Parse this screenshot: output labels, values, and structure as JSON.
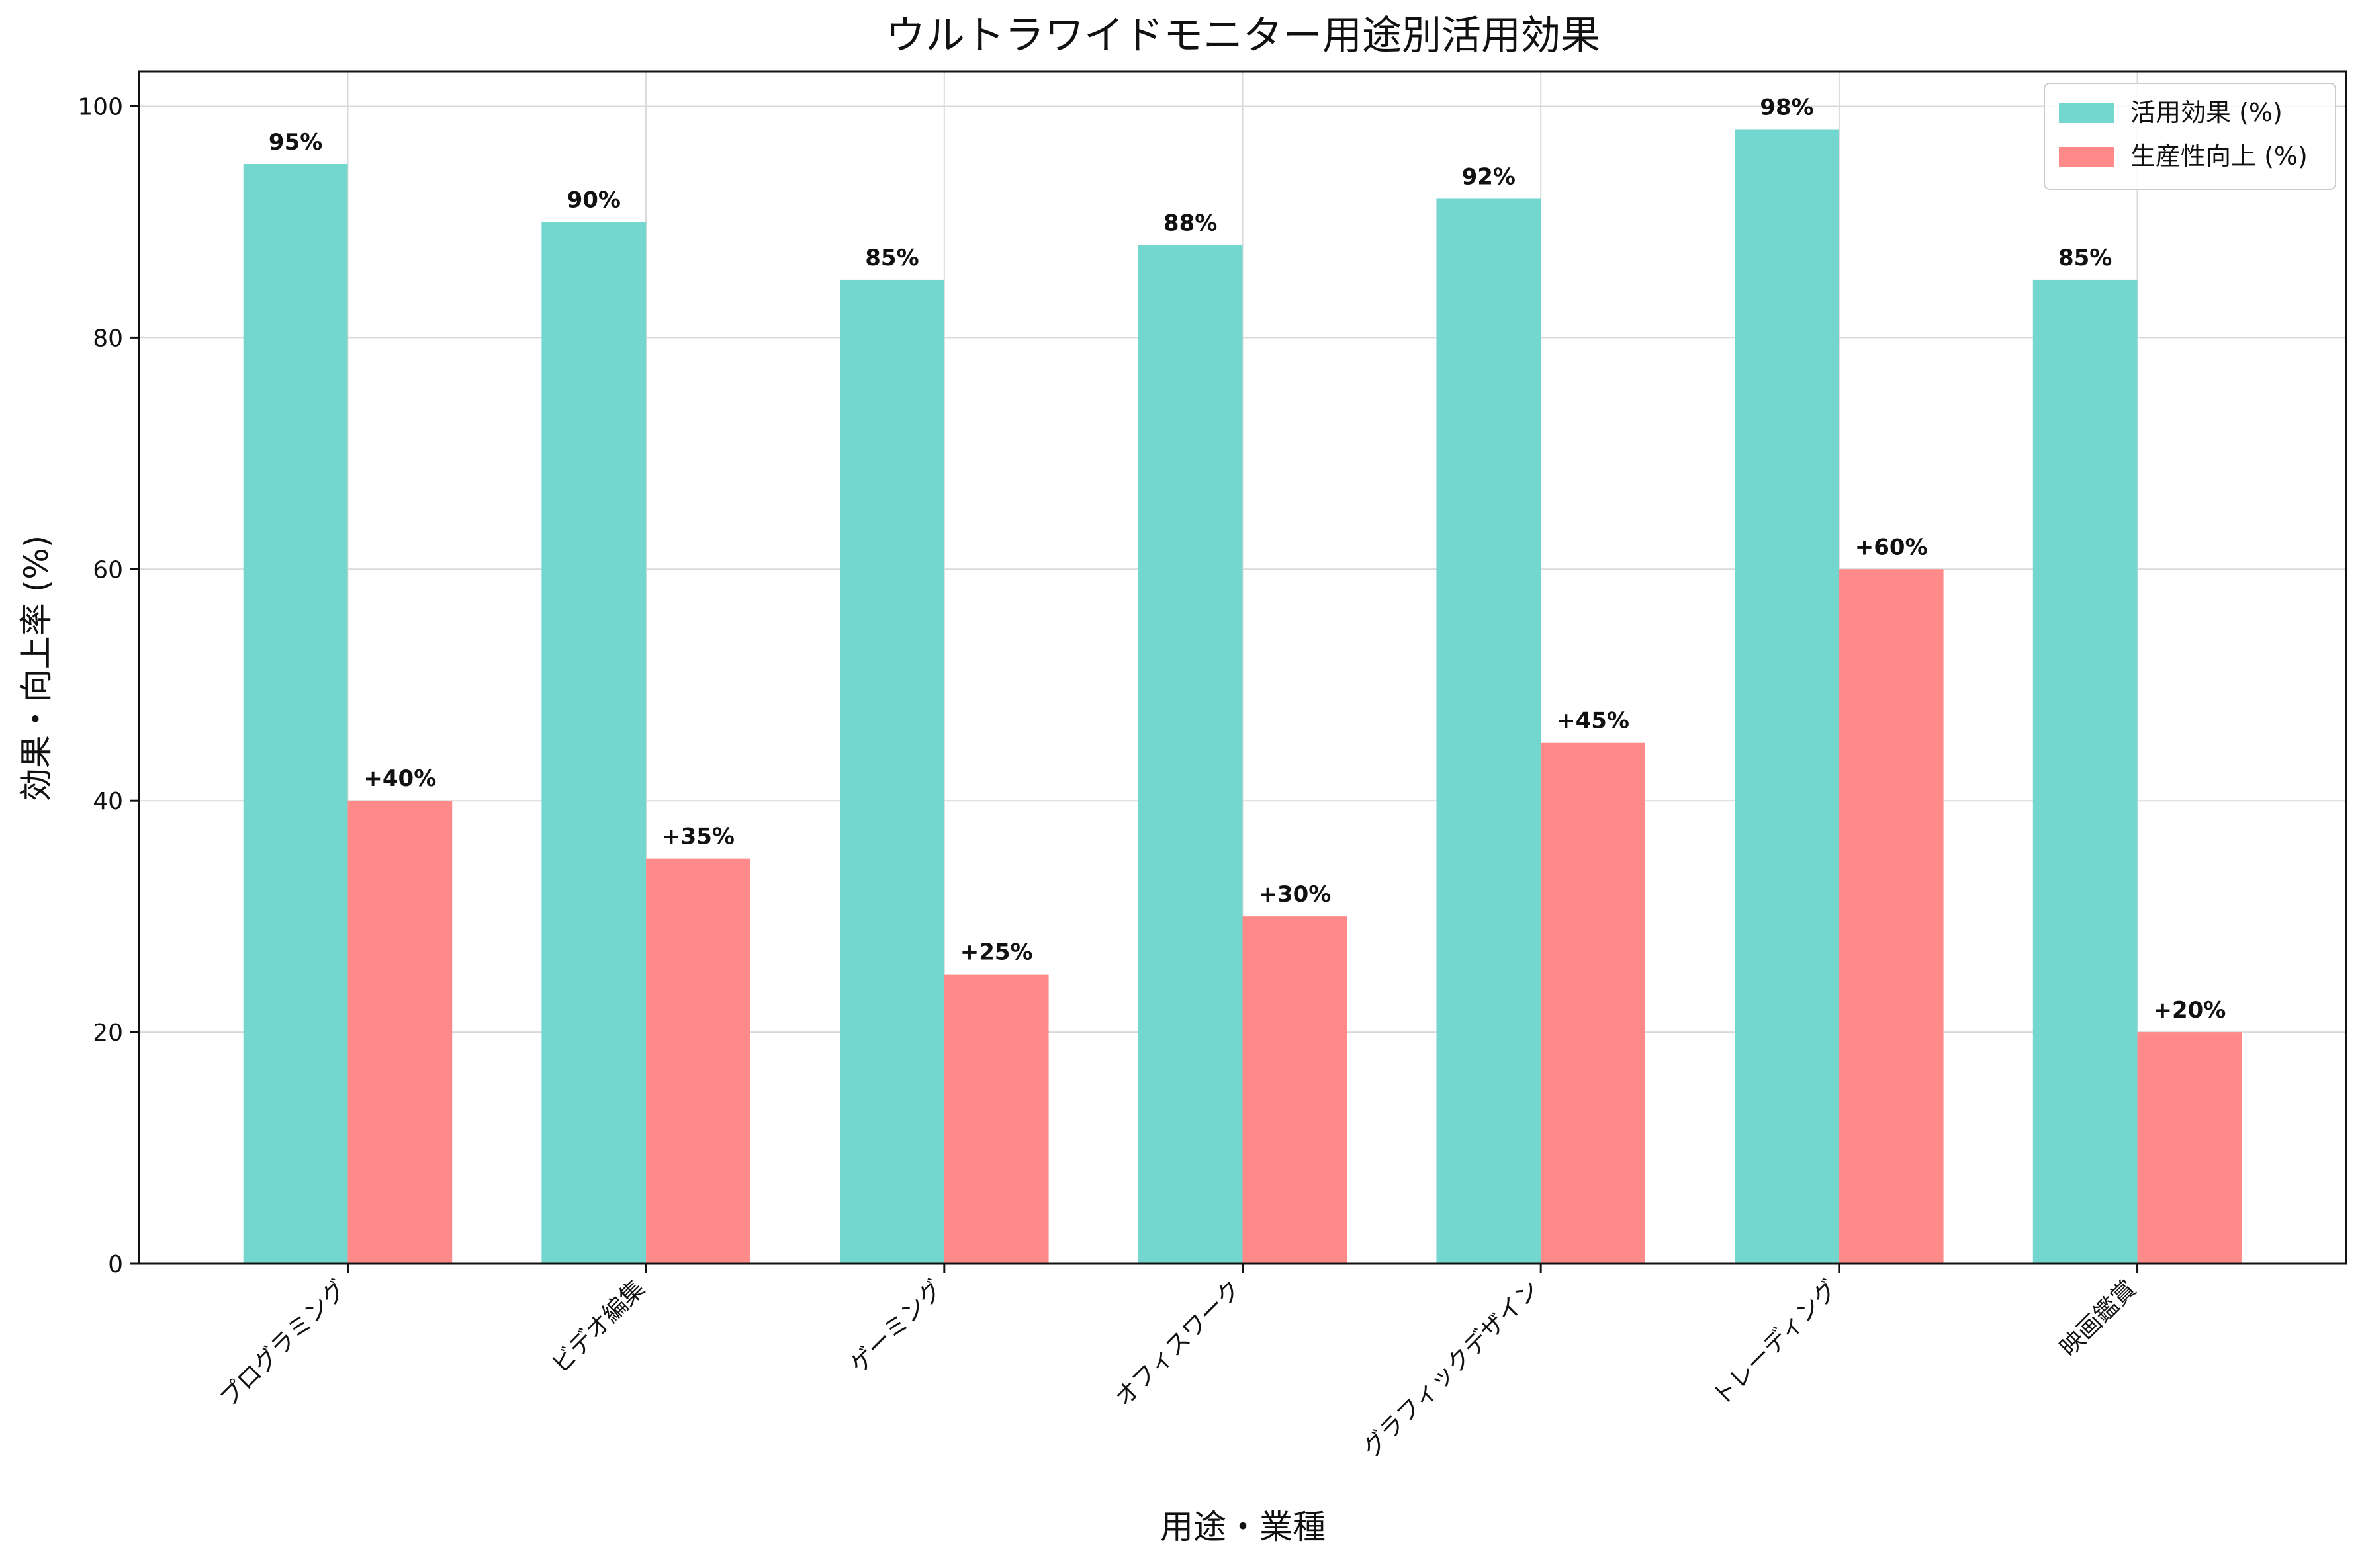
{
  "chart_data": {
    "type": "bar",
    "title": "ウルトラワイドモニター用途別活用効果",
    "xlabel": "用途・業種",
    "ylabel": "効果・向上率 (%)",
    "ylim": [
      0,
      103
    ],
    "yticks": [
      0,
      20,
      40,
      60,
      80,
      100
    ],
    "grid": true,
    "legend_position": "top-right",
    "categories": [
      "プログラミング",
      "ビデオ編集",
      "ゲーミング",
      "オフィスワーク",
      "グラフィックデザイン",
      "トレーディング",
      "映画鑑賞"
    ],
    "series": [
      {
        "name": "活用効果 (%)",
        "color": "#73d6cf",
        "values": [
          95,
          90,
          85,
          88,
          92,
          98,
          85
        ],
        "labels": [
          "95%",
          "90%",
          "85%",
          "88%",
          "92%",
          "98%",
          "85%"
        ]
      },
      {
        "name": "生産性向上 (%)",
        "color": "#ff8a89",
        "values": [
          40,
          35,
          25,
          30,
          45,
          60,
          20
        ],
        "labels": [
          "+40%",
          "+35%",
          "+25%",
          "+30%",
          "+45%",
          "+60%",
          "+20%"
        ]
      }
    ]
  }
}
